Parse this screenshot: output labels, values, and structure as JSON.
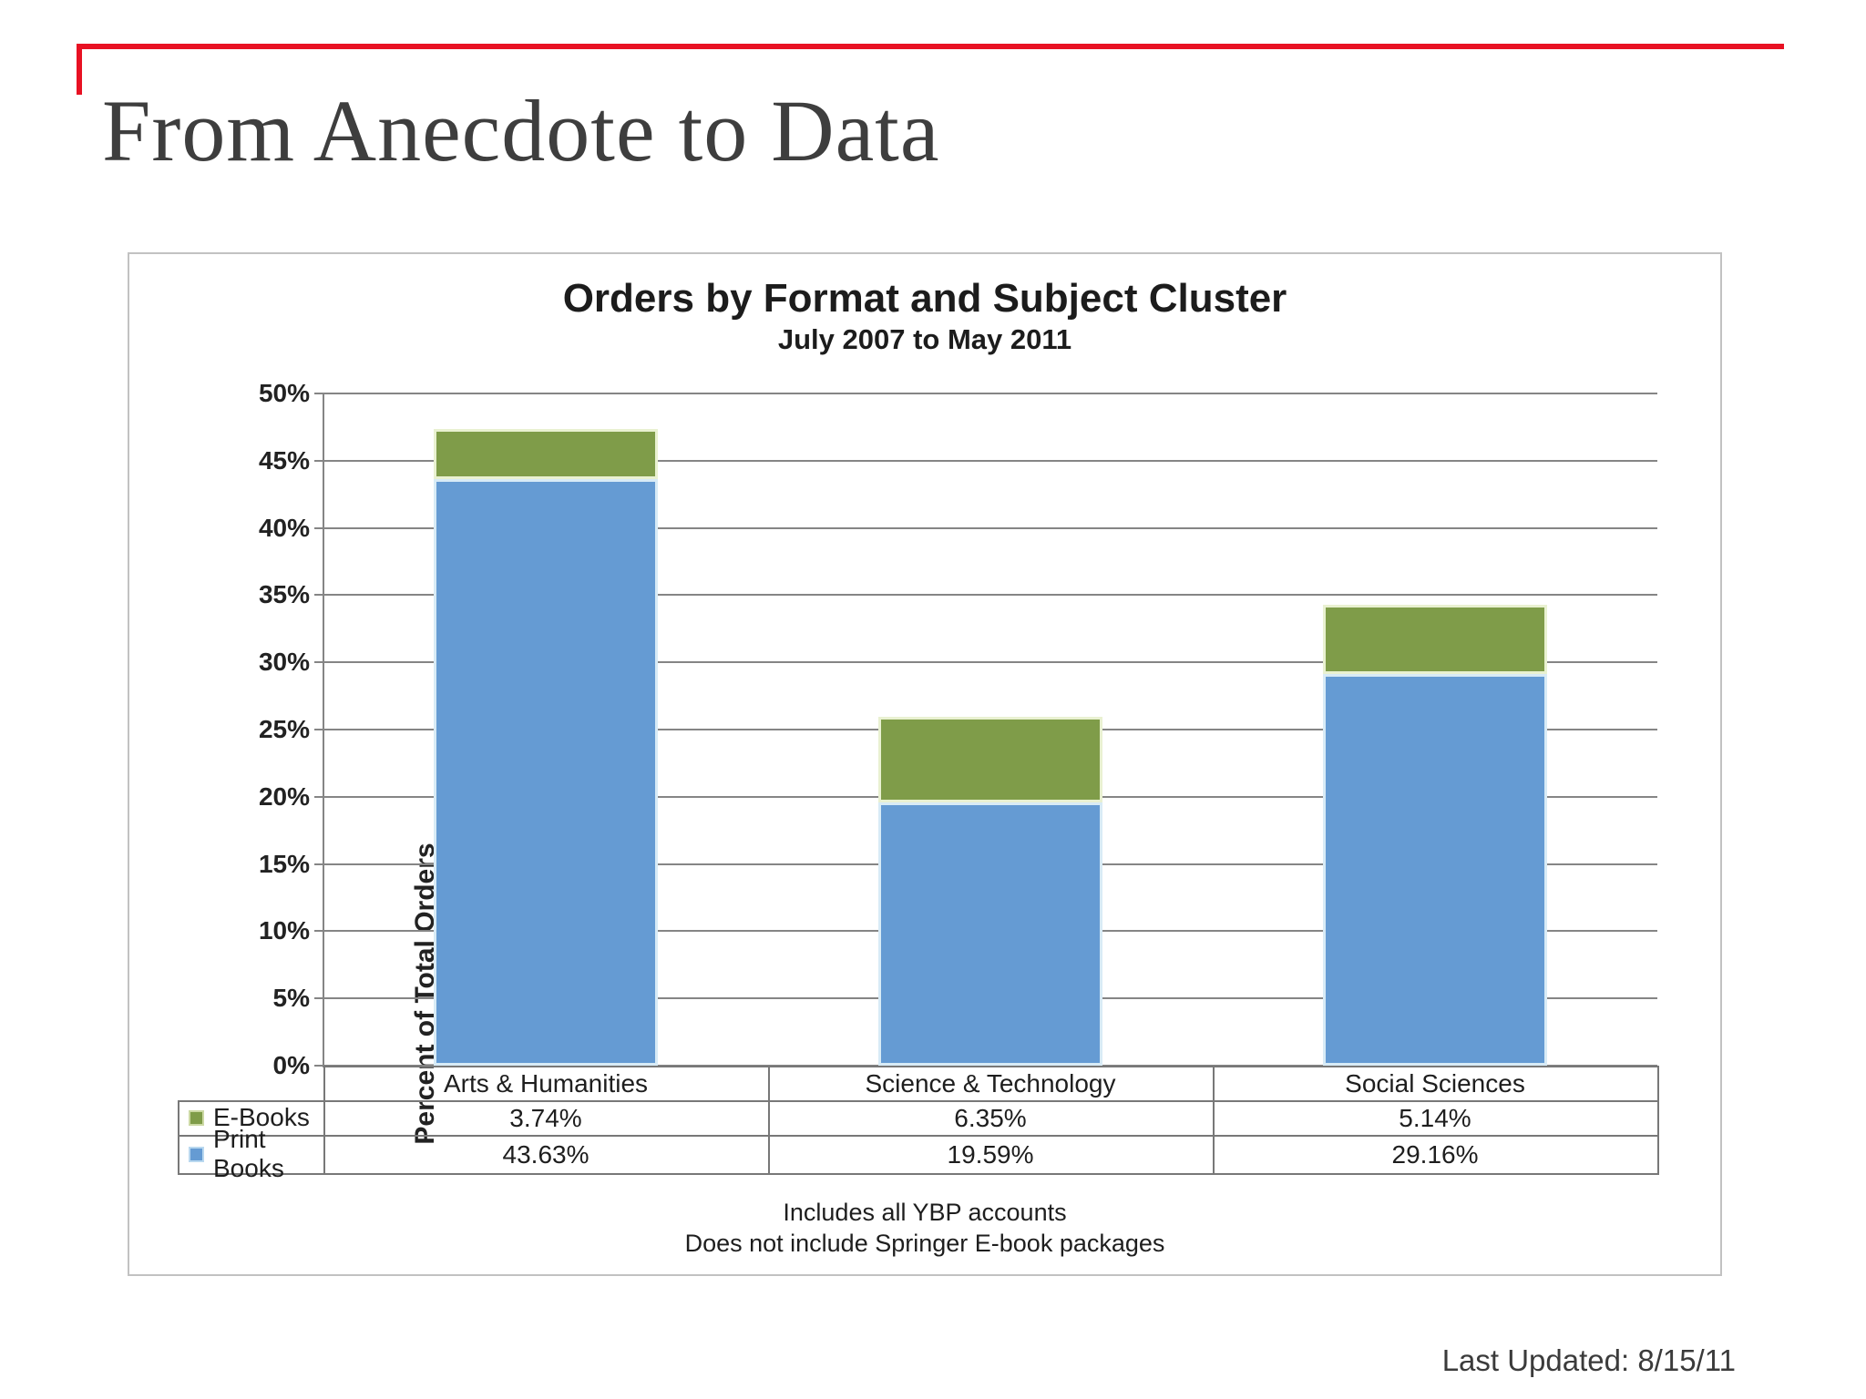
{
  "slide": {
    "title": "From Anecdote to Data",
    "last_updated": "Last Updated: 8/15/11",
    "accent_color": "#e81123",
    "background_color": "#ffffff"
  },
  "chart": {
    "title": "Orders by Format and Subject Cluster",
    "subtitle": "July 2007 to May 2011",
    "y_axis_title": "Percent of Total Orders",
    "footnotes": [
      "Includes all YBP accounts",
      "Does not include Springer E-book packages"
    ]
  },
  "chart_data": {
    "type": "bar",
    "stacked": true,
    "title": "Orders by Format and Subject Cluster",
    "subtitle": "July 2007 to May 2011",
    "xlabel": "",
    "ylabel": "Percent of Total Orders",
    "ylim": [
      0,
      50
    ],
    "ytick_step": 5,
    "ytick_labels": [
      "0%",
      "5%",
      "10%",
      "15%",
      "20%",
      "25%",
      "30%",
      "35%",
      "40%",
      "45%",
      "50%"
    ],
    "grid": true,
    "legend_position": "table-left",
    "categories": [
      "Arts & Humanities",
      "Science & Technology",
      "Social Sciences"
    ],
    "series": [
      {
        "name": "E-Books",
        "color": "#7f9c49",
        "edge_color": "#e9f1d1",
        "values": [
          3.74,
          6.35,
          5.14
        ],
        "labels": [
          "3.74%",
          "6.35%",
          "5.14%"
        ]
      },
      {
        "name": "Print Books",
        "color": "#659bd3",
        "edge_color": "#d8ebf6",
        "values": [
          43.63,
          19.59,
          29.16
        ],
        "labels": [
          "43.63%",
          "19.59%",
          "29.16%"
        ]
      }
    ]
  }
}
